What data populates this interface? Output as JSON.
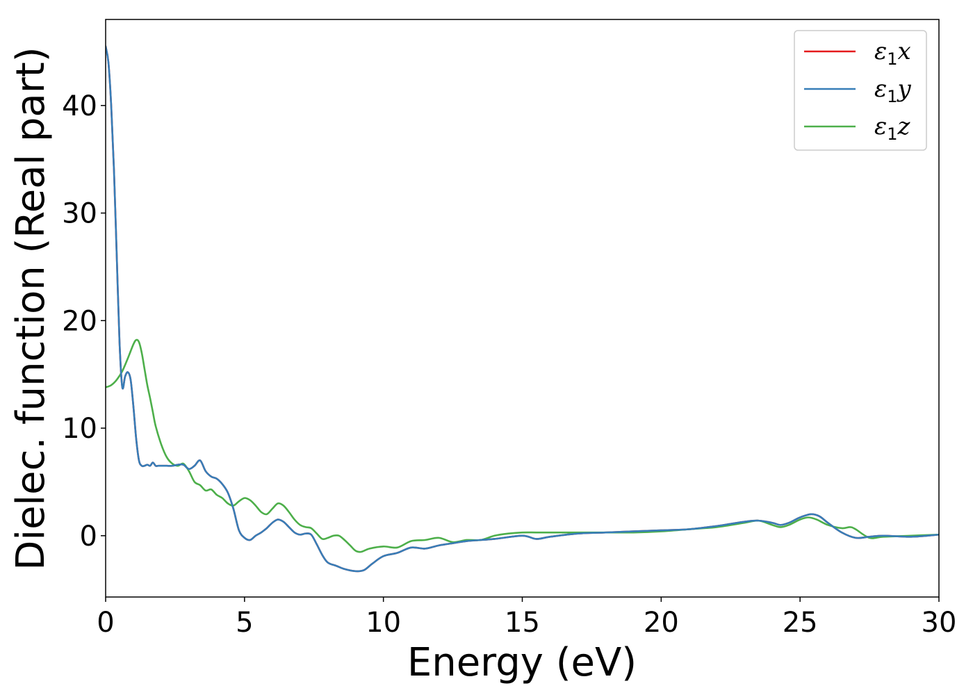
{
  "chart_data": {
    "type": "line",
    "title": "",
    "xlabel": "Energy (eV)",
    "ylabel": "Dielec. function (Real part)",
    "xlim": [
      0,
      30
    ],
    "ylim": [
      -5.7,
      48
    ],
    "xticks": [
      0,
      5,
      10,
      15,
      20,
      25,
      30
    ],
    "yticks": [
      0,
      10,
      20,
      30,
      40
    ],
    "grid": false,
    "legend_position": "top-right",
    "series": [
      {
        "name": "ε₁x",
        "legend_base": "ε",
        "legend_sub": "1",
        "legend_var": "x",
        "color": "#e41a1c",
        "x": [
          0,
          0.1,
          0.2,
          0.3,
          0.4,
          0.5,
          0.6,
          0.7,
          0.8,
          0.9,
          1.0,
          1.1,
          1.2,
          1.3,
          1.4,
          1.5,
          1.6,
          1.7,
          1.8,
          1.9,
          2.0,
          2.2,
          2.4,
          2.6,
          2.8,
          3.0,
          3.2,
          3.4,
          3.6,
          3.8,
          4.0,
          4.2,
          4.4,
          4.6,
          4.8,
          5.0,
          5.2,
          5.4,
          5.6,
          5.8,
          6.0,
          6.2,
          6.4,
          6.6,
          6.8,
          7.0,
          7.2,
          7.4,
          7.6,
          7.8,
          8.0,
          8.3,
          8.6,
          9.0,
          9.3,
          9.6,
          10.0,
          10.5,
          11.0,
          11.5,
          12.0,
          12.5,
          13.0,
          14.0,
          15.0,
          15.5,
          16.0,
          17.0,
          18.0,
          19.0,
          20.0,
          21.0,
          22.0,
          22.5,
          23.0,
          23.5,
          24.0,
          24.3,
          24.6,
          25.0,
          25.4,
          25.7,
          26.0,
          26.5,
          27.0,
          27.5,
          28.0,
          29.0,
          30.0
        ],
        "y": [
          45.5,
          44.0,
          40.0,
          34.0,
          26.0,
          18.0,
          13.8,
          14.8,
          15.2,
          14.5,
          12.0,
          9.0,
          7.0,
          6.5,
          6.5,
          6.6,
          6.5,
          6.8,
          6.5,
          6.5,
          6.5,
          6.5,
          6.5,
          6.6,
          6.6,
          6.2,
          6.5,
          7.0,
          6.0,
          5.5,
          5.3,
          4.8,
          4.0,
          2.5,
          0.5,
          -0.2,
          -0.4,
          0.0,
          0.3,
          0.7,
          1.2,
          1.5,
          1.3,
          0.8,
          0.3,
          0.1,
          0.2,
          0.1,
          -0.8,
          -1.8,
          -2.5,
          -2.8,
          -3.1,
          -3.3,
          -3.2,
          -2.6,
          -1.9,
          -1.6,
          -1.1,
          -1.2,
          -0.9,
          -0.7,
          -0.5,
          -0.3,
          0.0,
          -0.3,
          -0.1,
          0.2,
          0.3,
          0.4,
          0.5,
          0.6,
          0.9,
          1.1,
          1.3,
          1.4,
          1.2,
          1.0,
          1.2,
          1.7,
          2.0,
          1.8,
          1.2,
          0.3,
          -0.2,
          -0.1,
          0.0,
          -0.1,
          0.1
        ]
      },
      {
        "name": "ε₁y",
        "legend_base": "ε",
        "legend_sub": "1",
        "legend_var": "y",
        "color": "#377eb8",
        "x": [
          0,
          0.1,
          0.2,
          0.3,
          0.4,
          0.5,
          0.6,
          0.7,
          0.8,
          0.9,
          1.0,
          1.1,
          1.2,
          1.3,
          1.4,
          1.5,
          1.6,
          1.7,
          1.8,
          1.9,
          2.0,
          2.2,
          2.4,
          2.6,
          2.8,
          3.0,
          3.2,
          3.4,
          3.6,
          3.8,
          4.0,
          4.2,
          4.4,
          4.6,
          4.8,
          5.0,
          5.2,
          5.4,
          5.6,
          5.8,
          6.0,
          6.2,
          6.4,
          6.6,
          6.8,
          7.0,
          7.2,
          7.4,
          7.6,
          7.8,
          8.0,
          8.3,
          8.6,
          9.0,
          9.3,
          9.6,
          10.0,
          10.5,
          11.0,
          11.5,
          12.0,
          12.5,
          13.0,
          14.0,
          15.0,
          15.5,
          16.0,
          17.0,
          18.0,
          19.0,
          20.0,
          21.0,
          22.0,
          22.5,
          23.0,
          23.5,
          24.0,
          24.3,
          24.6,
          25.0,
          25.4,
          25.7,
          26.0,
          26.5,
          27.0,
          27.5,
          28.0,
          29.0,
          30.0
        ],
        "y": [
          45.5,
          44.0,
          40.0,
          34.0,
          26.0,
          18.0,
          13.8,
          14.8,
          15.2,
          14.5,
          12.0,
          9.0,
          7.0,
          6.5,
          6.5,
          6.6,
          6.5,
          6.8,
          6.5,
          6.5,
          6.5,
          6.5,
          6.5,
          6.6,
          6.6,
          6.2,
          6.5,
          7.0,
          6.0,
          5.5,
          5.3,
          4.8,
          4.0,
          2.5,
          0.5,
          -0.2,
          -0.4,
          0.0,
          0.3,
          0.7,
          1.2,
          1.5,
          1.3,
          0.8,
          0.3,
          0.1,
          0.2,
          0.1,
          -0.8,
          -1.8,
          -2.5,
          -2.8,
          -3.1,
          -3.3,
          -3.2,
          -2.6,
          -1.9,
          -1.6,
          -1.1,
          -1.2,
          -0.9,
          -0.7,
          -0.5,
          -0.3,
          0.0,
          -0.3,
          -0.1,
          0.2,
          0.3,
          0.4,
          0.5,
          0.6,
          0.9,
          1.1,
          1.3,
          1.4,
          1.2,
          1.0,
          1.2,
          1.7,
          2.0,
          1.8,
          1.2,
          0.3,
          -0.2,
          -0.1,
          0.0,
          -0.1,
          0.1
        ]
      },
      {
        "name": "ε₁z",
        "legend_base": "ε",
        "legend_sub": "1",
        "legend_var": "z",
        "color": "#4daf4a",
        "x": [
          0,
          0.2,
          0.4,
          0.6,
          0.8,
          1.0,
          1.1,
          1.2,
          1.3,
          1.4,
          1.5,
          1.6,
          1.7,
          1.8,
          2.0,
          2.2,
          2.4,
          2.6,
          2.8,
          3.0,
          3.2,
          3.4,
          3.6,
          3.8,
          4.0,
          4.2,
          4.4,
          4.6,
          4.8,
          5.0,
          5.2,
          5.4,
          5.6,
          5.8,
          6.0,
          6.2,
          6.4,
          6.6,
          6.8,
          7.0,
          7.2,
          7.4,
          7.6,
          7.8,
          8.0,
          8.2,
          8.4,
          8.6,
          8.8,
          9.0,
          9.2,
          9.5,
          10.0,
          10.5,
          11.0,
          11.5,
          12.0,
          12.5,
          13.0,
          13.5,
          14.0,
          14.5,
          15.0,
          15.5,
          16.0,
          17.0,
          18.0,
          19.0,
          20.0,
          21.0,
          22.0,
          23.0,
          23.5,
          24.0,
          24.3,
          24.6,
          25.0,
          25.3,
          25.6,
          26.0,
          26.5,
          26.8,
          27.0,
          27.5,
          28.0,
          29.0,
          30.0
        ],
        "y": [
          13.8,
          14.0,
          14.5,
          15.3,
          16.5,
          17.8,
          18.2,
          18.0,
          17.0,
          15.5,
          14.0,
          12.8,
          11.5,
          10.2,
          8.5,
          7.3,
          6.7,
          6.5,
          6.7,
          6.0,
          5.0,
          4.7,
          4.2,
          4.3,
          3.8,
          3.5,
          3.0,
          2.8,
          3.2,
          3.5,
          3.3,
          2.8,
          2.2,
          2.0,
          2.5,
          3.0,
          2.8,
          2.2,
          1.5,
          1.0,
          0.8,
          0.7,
          0.2,
          -0.3,
          -0.2,
          0.0,
          0.0,
          -0.4,
          -0.9,
          -1.4,
          -1.5,
          -1.2,
          -1.0,
          -1.1,
          -0.5,
          -0.4,
          -0.2,
          -0.6,
          -0.4,
          -0.4,
          0.0,
          0.2,
          0.3,
          0.3,
          0.3,
          0.3,
          0.3,
          0.3,
          0.4,
          0.6,
          0.8,
          1.2,
          1.4,
          1.0,
          0.8,
          1.0,
          1.5,
          1.7,
          1.5,
          1.0,
          0.7,
          0.8,
          0.6,
          -0.2,
          -0.1,
          0.0,
          0.1
        ]
      }
    ]
  }
}
